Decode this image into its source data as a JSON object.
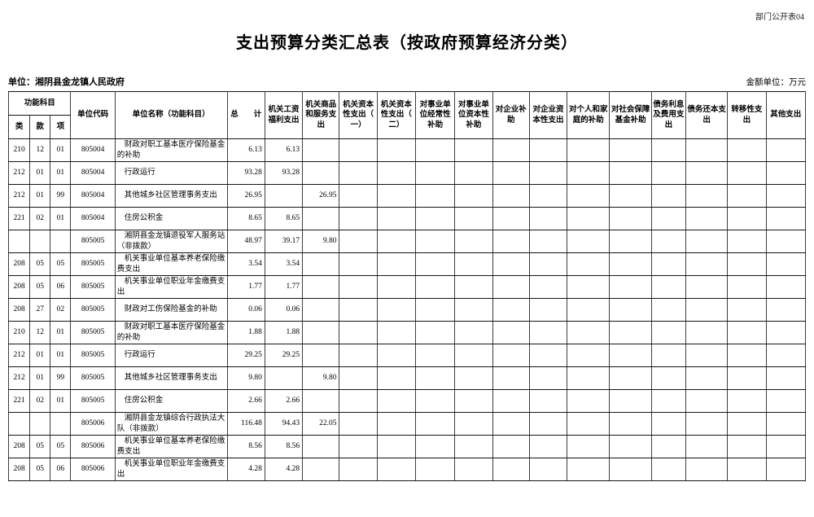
{
  "page": {
    "doc_label": "部门公开表04",
    "title": "支出预算分类汇总表（按政府预算经济分类）",
    "unit_label": "单位：湘阴县金龙镇人民政府",
    "amount_unit_label": "金额单位：万元"
  },
  "table": {
    "header": {
      "func_group": "功能科目",
      "func_cols": [
        "类",
        "款",
        "项"
      ],
      "unit_code": "单位代码",
      "unit_name": "单位名称（功能科目）",
      "value_cols": [
        "总　　计",
        "机关工资福利支出",
        "机关商品和服务支出",
        "机关资本性支出（一）",
        "机关资本性支出（二）",
        "对事业单位经常性补助",
        "对事业单位资本性补助",
        "对企业补助",
        "对企业资本性支出",
        "对个人和家庭的补助",
        "对社会保障基金补助",
        "债务利息及费用支出",
        "债务还本支出",
        "转移性支出",
        "其他支出"
      ]
    },
    "rows": [
      {
        "lei": "210",
        "kuan": "12",
        "xiang": "01",
        "code": "805004",
        "name": "财政对职工基本医疗保险基金的补助",
        "values": [
          "6.13",
          "6.13"
        ]
      },
      {
        "lei": "212",
        "kuan": "01",
        "xiang": "01",
        "code": "805004",
        "name": "行政运行",
        "values": [
          "93.28",
          "93.28"
        ]
      },
      {
        "lei": "212",
        "kuan": "01",
        "xiang": "99",
        "code": "805004",
        "name": "其他城乡社区管理事务支出",
        "values": [
          "26.95",
          "",
          "26.95"
        ]
      },
      {
        "lei": "221",
        "kuan": "02",
        "xiang": "01",
        "code": "805004",
        "name": "住房公积金",
        "values": [
          "8.65",
          "8.65"
        ]
      },
      {
        "lei": "",
        "kuan": "",
        "xiang": "",
        "code": "805005",
        "name": "湘阴县金龙镇退役军人服务站（非拨款）",
        "values": [
          "48.97",
          "39.17",
          "9.80"
        ]
      },
      {
        "lei": "208",
        "kuan": "05",
        "xiang": "05",
        "code": "805005",
        "name": "机关事业单位基本养老保险缴费支出",
        "values": [
          "3.54",
          "3.54"
        ]
      },
      {
        "lei": "208",
        "kuan": "05",
        "xiang": "06",
        "code": "805005",
        "name": "机关事业单位职业年金缴费支出",
        "values": [
          "1.77",
          "1.77"
        ]
      },
      {
        "lei": "208",
        "kuan": "27",
        "xiang": "02",
        "code": "805005",
        "name": "财政对工伤保险基金的补助",
        "values": [
          "0.06",
          "0.06"
        ]
      },
      {
        "lei": "210",
        "kuan": "12",
        "xiang": "01",
        "code": "805005",
        "name": "财政对职工基本医疗保险基金的补助",
        "values": [
          "1.88",
          "1.88"
        ]
      },
      {
        "lei": "212",
        "kuan": "01",
        "xiang": "01",
        "code": "805005",
        "name": "行政运行",
        "values": [
          "29.25",
          "29.25"
        ]
      },
      {
        "lei": "212",
        "kuan": "01",
        "xiang": "99",
        "code": "805005",
        "name": "其他城乡社区管理事务支出",
        "values": [
          "9.80",
          "",
          "9.80"
        ]
      },
      {
        "lei": "221",
        "kuan": "02",
        "xiang": "01",
        "code": "805005",
        "name": "住房公积金",
        "values": [
          "2.66",
          "2.66"
        ]
      },
      {
        "lei": "",
        "kuan": "",
        "xiang": "",
        "code": "805006",
        "name": "湘阴县金龙镇综合行政执法大队（非拨款）",
        "values": [
          "116.48",
          "94.43",
          "22.05"
        ]
      },
      {
        "lei": "208",
        "kuan": "05",
        "xiang": "05",
        "code": "805006",
        "name": "机关事业单位基本养老保险缴费支出",
        "values": [
          "8.56",
          "8.56"
        ]
      },
      {
        "lei": "208",
        "kuan": "05",
        "xiang": "06",
        "code": "805006",
        "name": "机关事业单位职业年金缴费支出",
        "values": [
          "4.28",
          "4.28"
        ]
      }
    ]
  }
}
